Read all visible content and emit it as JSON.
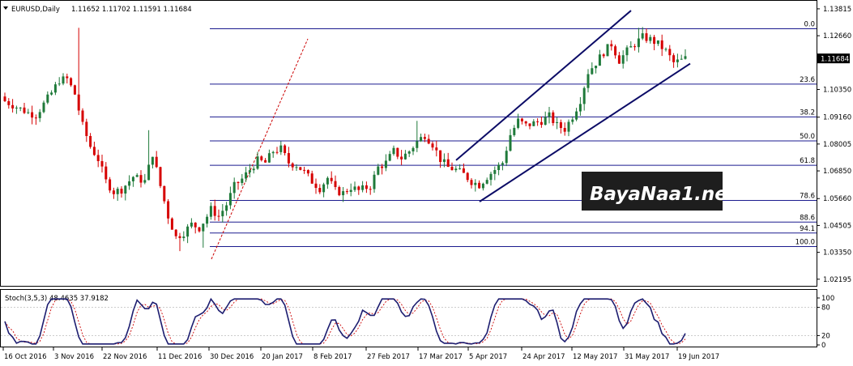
{
  "header": {
    "symbol_label": "EURUSD,Daily",
    "ohlc_label": "1.11652 1.11702 1.11591 1.11684"
  },
  "watermark": {
    "text": "BayaNaa1.net"
  },
  "chart_data": [
    {
      "type": "candlestick",
      "title": "EURUSD,Daily",
      "ylim": [
        1.0191,
        1.1416
      ],
      "price_ticks": [
        "1.13815",
        "1.12660",
        "1.11684",
        "1.10350",
        "1.09160",
        "1.08005",
        "1.06850",
        "1.05660",
        "1.04505",
        "1.03350",
        "1.02195"
      ],
      "price_tick_values": [
        1.13815,
        1.1266,
        1.11684,
        1.1035,
        1.0916,
        1.08005,
        1.0685,
        1.0566,
        1.04505,
        1.0335,
        1.02195
      ],
      "current_price": "1.11684",
      "date_ticks": [
        "16 Oct 2016",
        "3 Nov 2016",
        "22 Nov 2016",
        "11 Dec 2016",
        "30 Dec 2016",
        "20 Jan 2017",
        "8 Feb 2017",
        "27 Feb 2017",
        "17 Mar 2017",
        "5 Apr 2017",
        "24 Apr 2017",
        "12 May 2017",
        "31 May 2017",
        "19 Jun 2017"
      ],
      "fibonacci": {
        "levels": [
          "0.0",
          "23.6",
          "38.2",
          "50.0",
          "61.8",
          "78.6",
          "88.6",
          "94.1",
          "100.0"
        ],
        "prices": [
          1.1296,
          1.1058,
          1.0917,
          1.0814,
          1.0709,
          1.0558,
          1.0465,
          1.0418,
          1.036
        ]
      },
      "channel": {
        "upper": [
          [
            1.0731,
            1.1374
          ],
          [
            1.1146,
            1.1281
          ]
        ],
        "lower": [
          [
            1.0553,
            1.1146
          ],
          [
            1.0898,
            1.1281
          ]
        ]
      }
    },
    {
      "type": "line",
      "title": "Stoch(3,5,3) 48.4635 37.9182",
      "ylim": [
        0,
        100
      ],
      "ticks": [
        "100",
        "80",
        "20",
        "0"
      ],
      "tick_values": [
        100,
        80,
        20,
        0
      ],
      "main_color": "#1d1d70",
      "signal_color": "#cc0000"
    }
  ],
  "colors": {
    "bull": "#1f7a3a",
    "bear": "#d60000",
    "fib": "#1b1b8f",
    "channel": "#0b0b66"
  }
}
